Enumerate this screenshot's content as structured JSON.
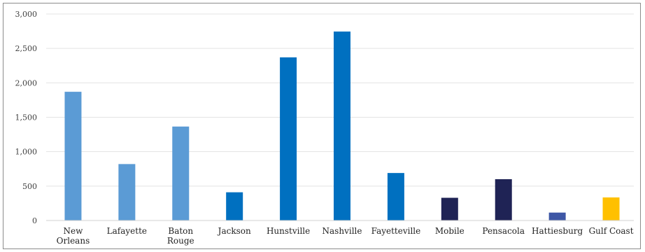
{
  "chart_data": {
    "type": "bar",
    "title": "",
    "xlabel": "",
    "ylabel": "",
    "ylim": [
      0,
      3000
    ],
    "yticks": [
      0,
      500,
      1000,
      1500,
      2000,
      2500,
      3000
    ],
    "ytick_labels": [
      "0",
      "500",
      "1,000",
      "1,500",
      "2,000",
      "2,500",
      "3,000"
    ],
    "grid": "horizontal",
    "legend": "none",
    "categories": [
      [
        "New",
        "Orleans"
      ],
      [
        "Lafayette"
      ],
      [
        "Baton",
        "Rouge"
      ],
      [
        "Jackson"
      ],
      [
        "Hunstville"
      ],
      [
        "Nashville"
      ],
      [
        "Fayetteville"
      ],
      [
        "Mobile"
      ],
      [
        "Pensacola"
      ],
      [
        "Hattiesburg"
      ],
      [
        "Gulf Coast"
      ]
    ],
    "values": [
      1870,
      820,
      1365,
      410,
      2370,
      2745,
      690,
      330,
      600,
      115,
      335
    ],
    "colors": [
      "#5b9bd5",
      "#5b9bd5",
      "#5b9bd5",
      "#0070c0",
      "#0070c0",
      "#0070c0",
      "#0070c0",
      "#1f2355",
      "#1f2355",
      "#3e57a6",
      "#ffc000"
    ]
  }
}
